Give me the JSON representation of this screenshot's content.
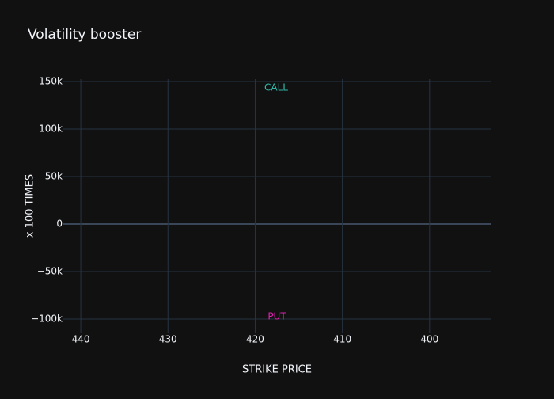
{
  "chart_data": {
    "type": "line",
    "title": "Volatility booster",
    "x_label": "STRIKE PRICE",
    "y_label": "x 100 TIMES",
    "xlim": [
      442,
      393
    ],
    "xticks": [
      440,
      430,
      420,
      410,
      400
    ],
    "ylim": [
      -114200,
      152500
    ],
    "yticks": [
      {
        "value": -100000,
        "label": "−100k"
      },
      {
        "value": -50000,
        "label": "−50k"
      },
      {
        "value": 0,
        "label": "0"
      },
      {
        "value": 50000,
        "label": "50k"
      },
      {
        "value": 100000,
        "label": "100k"
      },
      {
        "value": 150000,
        "label": "150k"
      }
    ],
    "grid": true,
    "annotations": [
      {
        "text": "CALL",
        "color": "#2fb8a8"
      },
      {
        "text": "PUT",
        "color": "#e020b0"
      }
    ]
  }
}
